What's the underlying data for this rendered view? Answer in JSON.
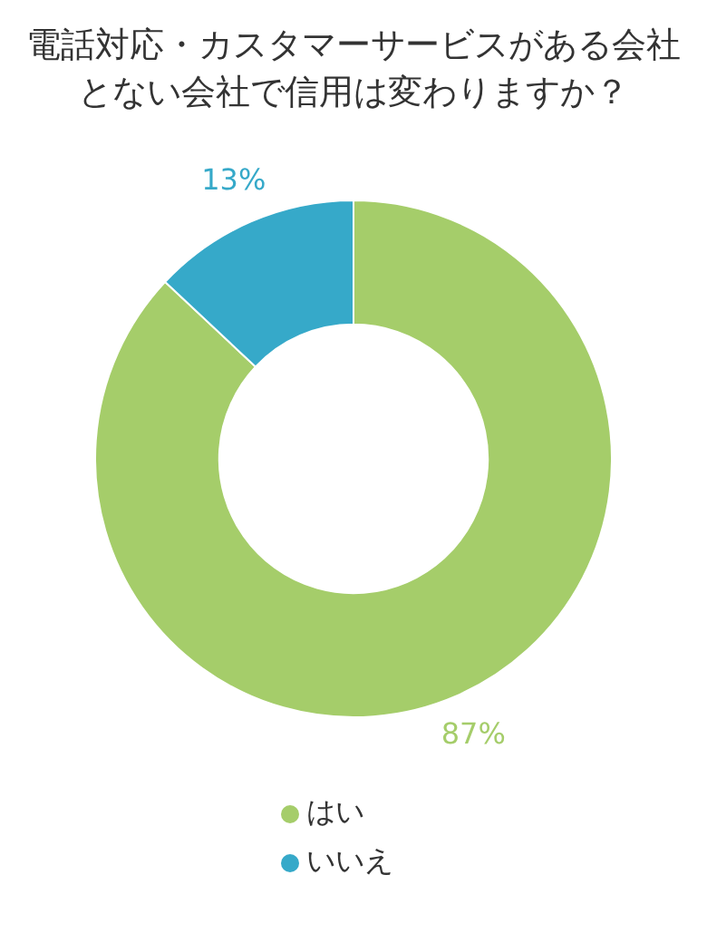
{
  "chart_data": {
    "type": "donut",
    "title": "電話対応・カスタマーサービスがある会社とない会社で信用は変わりますか？",
    "categories": [
      "はい",
      "いいえ"
    ],
    "values": [
      87,
      13
    ],
    "colors": [
      "#a5cd6a",
      "#36a9c9"
    ],
    "value_labels": [
      "87%",
      "13%"
    ],
    "legend": "bottom"
  }
}
